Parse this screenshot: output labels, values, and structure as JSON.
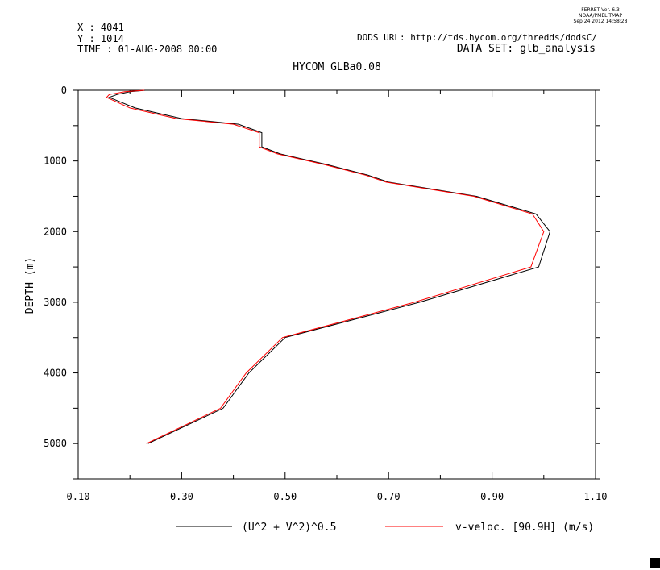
{
  "header": {
    "ferret_version": "FERRET Ver. 6.3",
    "ferret_org": "NOAA/PMEL TMAP",
    "ferret_date": "Sep 24 2012 14:58:28",
    "x_label": "X : 4041",
    "y_label": "Y : 1014",
    "time_label": "TIME : 01-AUG-2008 00:00",
    "dods_url": "DODS URL: http://tds.hycom.org/thredds/dodsC/",
    "dataset": "DATA SET: glb_analysis"
  },
  "chart_data": {
    "type": "line",
    "title": "HYCOM GLBa0.08",
    "xlabel": "",
    "ylabel": "DEPTH (m)",
    "xlim": [
      0.1,
      1.1
    ],
    "ylim": [
      5500,
      0
    ],
    "x_ticks": [
      "0.10",
      "0.30",
      "0.50",
      "0.70",
      "0.90",
      "1.10"
    ],
    "y_ticks": [
      "0",
      "1000",
      "2000",
      "3000",
      "4000",
      "5000"
    ],
    "grid": false,
    "legend_position": "bottom",
    "series": [
      {
        "name": "(U^2 + V^2)^0.5",
        "color": "#000000",
        "points": [
          [
            0.23,
            0
          ],
          [
            0.2,
            20
          ],
          [
            0.175,
            60
          ],
          [
            0.16,
            100
          ],
          [
            0.21,
            250
          ],
          [
            0.3,
            400
          ],
          [
            0.41,
            480
          ],
          [
            0.455,
            600
          ],
          [
            0.455,
            800
          ],
          [
            0.49,
            900
          ],
          [
            0.58,
            1050
          ],
          [
            0.66,
            1200
          ],
          [
            0.7,
            1300
          ],
          [
            0.87,
            1500
          ],
          [
            0.985,
            1750
          ],
          [
            1.012,
            2000
          ],
          [
            0.99,
            2500
          ],
          [
            0.76,
            3000
          ],
          [
            0.5,
            3500
          ],
          [
            0.43,
            4000
          ],
          [
            0.38,
            4500
          ],
          [
            0.235,
            5000
          ]
        ]
      },
      {
        "name": "v-veloc. [90.9H] (m/s)",
        "color": "#ff0000",
        "points": [
          [
            0.228,
            0
          ],
          [
            0.19,
            20
          ],
          [
            0.16,
            60
          ],
          [
            0.155,
            100
          ],
          [
            0.2,
            250
          ],
          [
            0.29,
            400
          ],
          [
            0.4,
            480
          ],
          [
            0.45,
            600
          ],
          [
            0.45,
            800
          ],
          [
            0.485,
            900
          ],
          [
            0.575,
            1050
          ],
          [
            0.655,
            1200
          ],
          [
            0.695,
            1300
          ],
          [
            0.865,
            1500
          ],
          [
            0.978,
            1750
          ],
          [
            1.0,
            2000
          ],
          [
            0.975,
            2500
          ],
          [
            0.75,
            3000
          ],
          [
            0.495,
            3500
          ],
          [
            0.425,
            4000
          ],
          [
            0.375,
            4500
          ],
          [
            0.232,
            5000
          ]
        ]
      }
    ]
  }
}
